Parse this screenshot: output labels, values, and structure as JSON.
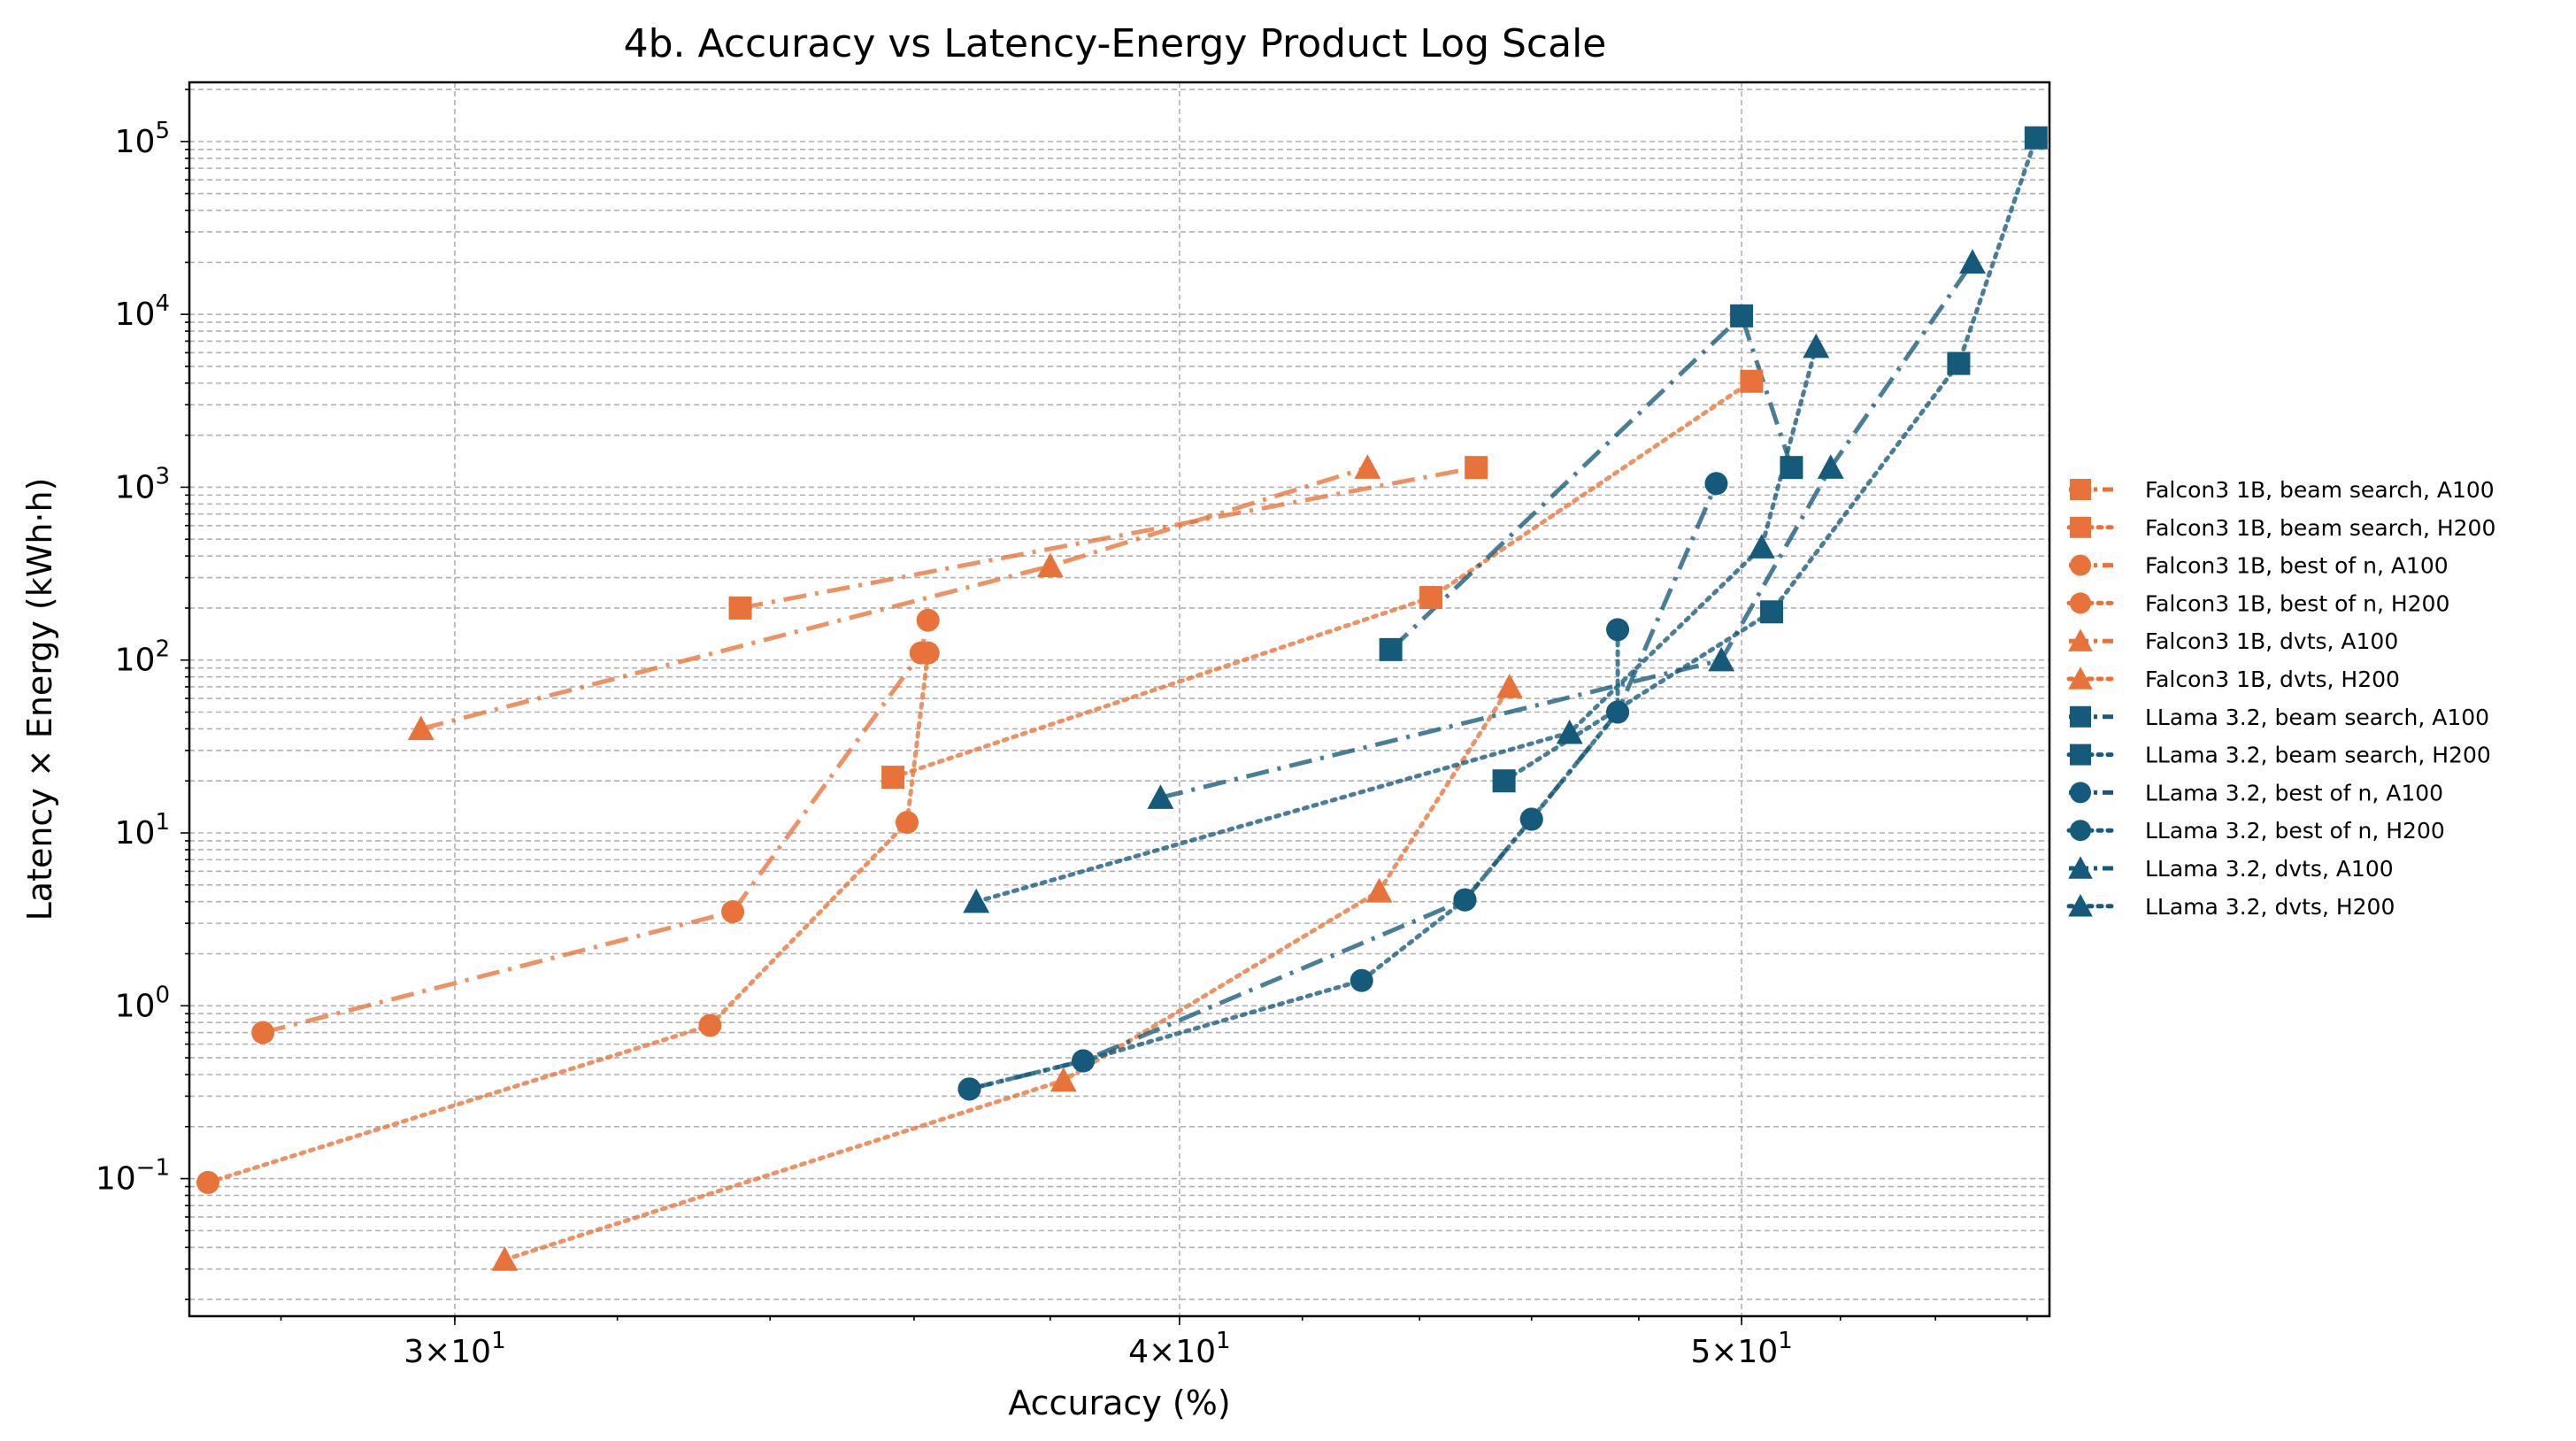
{
  "chart_data": {
    "type": "line",
    "title": "4b. Accuracy vs Latency-Energy Product Log Scale",
    "xlabel": "Accuracy (%)",
    "ylabel": "Latency × Energy (kWh·h)",
    "xscale": "log",
    "yscale": "log",
    "xlim": [
      27,
      56.5
    ],
    "ylim": [
      0.016,
      220000
    ],
    "grid": true,
    "legend_position": "outside-right",
    "colors": {
      "falcon": "#e8733a",
      "llama": "#155a7a"
    },
    "x_ticks": [
      {
        "value": 30,
        "base": "3×10",
        "exp": "1"
      },
      {
        "value": 40,
        "base": "4×10",
        "exp": "1"
      },
      {
        "value": 50,
        "base": "5×10",
        "exp": "1"
      }
    ],
    "y_ticks": [
      {
        "value": 0.1,
        "base": "10",
        "exp": "−1"
      },
      {
        "value": 1,
        "base": "10",
        "exp": "0"
      },
      {
        "value": 10,
        "base": "10",
        "exp": "1"
      },
      {
        "value": 100,
        "base": "10",
        "exp": "2"
      },
      {
        "value": 1000,
        "base": "10",
        "exp": "3"
      },
      {
        "value": 10000,
        "base": "10",
        "exp": "4"
      },
      {
        "value": 100000,
        "base": "10",
        "exp": "5"
      }
    ],
    "series": [
      {
        "name": "Falcon3 1B, beam search, A100",
        "color": "#e8733a",
        "marker": "square",
        "linestyle": "dashdot",
        "x": [
          33.6,
          45.0
        ],
        "y": [
          200,
          1300
        ]
      },
      {
        "name": "Falcon3 1B, beam search, H200",
        "color": "#e8733a",
        "marker": "square",
        "linestyle": "dotted",
        "x": [
          35.7,
          44.2,
          50.2
        ],
        "y": [
          21,
          230,
          4100
        ]
      },
      {
        "name": "Falcon3 1B, best of n, A100",
        "color": "#e8733a",
        "marker": "circle",
        "linestyle": "dashdot",
        "x": [
          27.8,
          33.5,
          36.1,
          36.2
        ],
        "y": [
          0.7,
          3.5,
          110,
          170
        ]
      },
      {
        "name": "Falcon3 1B, best of n, H200",
        "color": "#e8733a",
        "marker": "circle",
        "linestyle": "dotted",
        "x": [
          27.2,
          33.2,
          35.9,
          36.2
        ],
        "y": [
          0.095,
          0.77,
          11.5,
          110
        ]
      },
      {
        "name": "Falcon3 1B, dvts, A100",
        "color": "#e8733a",
        "marker": "triangle",
        "linestyle": "dashdot",
        "x": [
          29.6,
          38.0,
          43.1
        ],
        "y": [
          40,
          350,
          1300
        ]
      },
      {
        "name": "Falcon3 1B, dvts, H200",
        "color": "#e8733a",
        "marker": "triangle",
        "linestyle": "dotted",
        "x": [
          30.6,
          38.2,
          43.3,
          45.6
        ],
        "y": [
          0.034,
          0.37,
          4.6,
          70
        ]
      },
      {
        "name": "LLama 3.2, beam search, A100",
        "color": "#155a7a",
        "marker": "square",
        "linestyle": "dashdot",
        "x": [
          43.5,
          50.0,
          51.0
        ],
        "y": [
          115,
          9800,
          1300
        ]
      },
      {
        "name": "LLama 3.2, beam search, H200",
        "color": "#155a7a",
        "marker": "square",
        "linestyle": "dotted",
        "x": [
          45.5,
          50.6,
          54.5,
          56.2
        ],
        "y": [
          20,
          190,
          5200,
          105000
        ]
      },
      {
        "name": "LLama 3.2, best of n, A100",
        "color": "#155a7a",
        "marker": "circle",
        "linestyle": "dashdot",
        "x": [
          36.8,
          38.5,
          44.8,
          46.0,
          47.6,
          49.5
        ],
        "y": [
          0.33,
          0.48,
          4.1,
          12,
          50,
          1050
        ]
      },
      {
        "name": "LLama 3.2, best of n, H200",
        "color": "#155a7a",
        "marker": "circle",
        "linestyle": "dotted",
        "x": [
          36.8,
          38.5,
          43.0,
          44.8,
          46.0,
          47.6,
          47.6
        ],
        "y": [
          0.33,
          0.48,
          1.4,
          4.1,
          12,
          50,
          150
        ]
      },
      {
        "name": "LLama 3.2, dvts, A100",
        "color": "#155a7a",
        "marker": "triangle",
        "linestyle": "dashdot",
        "x": [
          39.7,
          49.6,
          51.8,
          54.8
        ],
        "y": [
          16,
          100,
          1300,
          20000
        ]
      },
      {
        "name": "LLama 3.2, dvts, H200",
        "color": "#155a7a",
        "marker": "triangle",
        "linestyle": "dotted",
        "x": [
          36.9,
          46.7,
          50.4,
          51.5
        ],
        "y": [
          4,
          38,
          450,
          6500
        ]
      }
    ]
  }
}
